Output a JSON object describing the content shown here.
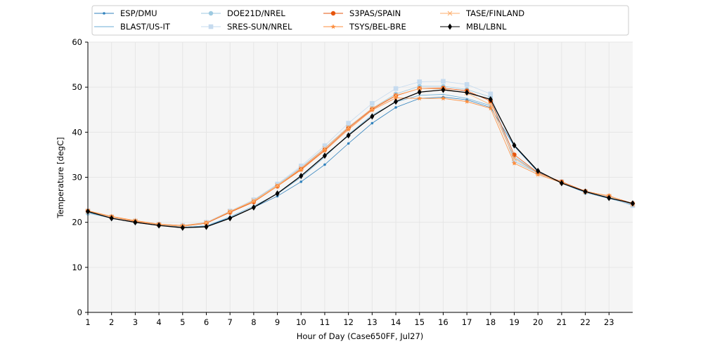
{
  "chart_data": {
    "type": "line",
    "xlabel": "Hour of Day (Case650FF, Jul27)",
    "ylabel": "Temperature [degC]",
    "xlim": [
      1,
      24
    ],
    "ylim": [
      0,
      60
    ],
    "xticks": [
      1,
      2,
      3,
      4,
      5,
      6,
      7,
      8,
      9,
      10,
      11,
      12,
      13,
      14,
      15,
      16,
      17,
      18,
      19,
      20,
      21,
      22,
      23
    ],
    "yticks": [
      0,
      10,
      20,
      30,
      40,
      50,
      60
    ],
    "grid": true,
    "legend_position": "top-center",
    "x": [
      1,
      2,
      3,
      4,
      5,
      6,
      7,
      8,
      9,
      10,
      11,
      12,
      13,
      14,
      15,
      16,
      17,
      18,
      19,
      20,
      21,
      22,
      23,
      24
    ],
    "series": [
      {
        "name": "ESP/DMU",
        "color": "#3182bd",
        "marker": "dot",
        "values": [
          22.2,
          20.9,
          20.0,
          19.3,
          18.9,
          19.2,
          21.0,
          23.3,
          25.8,
          29.0,
          32.8,
          37.5,
          42.0,
          45.5,
          47.5,
          47.8,
          47.2,
          45.5,
          36.9,
          31.2,
          28.7,
          26.6,
          25.3,
          23.9
        ]
      },
      {
        "name": "BLAST/US-IT",
        "color": "#6baed6",
        "marker": "tick",
        "values": [
          22.2,
          20.9,
          20.0,
          19.3,
          18.9,
          19.2,
          21.2,
          23.6,
          26.3,
          30.0,
          34.5,
          39.5,
          43.8,
          46.7,
          48.2,
          48.4,
          47.5,
          45.9,
          34.5,
          30.9,
          28.9,
          26.7,
          25.4,
          23.8
        ]
      },
      {
        "name": "DOE21D/NREL",
        "color": "#9ecae1",
        "marker": "circle",
        "values": [
          22.0,
          20.9,
          20.0,
          19.3,
          19.1,
          19.8,
          22.2,
          24.9,
          28.3,
          32.2,
          36.5,
          41.2,
          45.3,
          48.5,
          50.2,
          50.2,
          49.5,
          47.8,
          33.5,
          30.9,
          28.9,
          26.6,
          25.4,
          23.7
        ]
      },
      {
        "name": "SRES-SUN/NREL",
        "color": "#c6dbef",
        "marker": "square",
        "values": [
          22.5,
          21.2,
          20.3,
          19.6,
          19.3,
          20.0,
          22.5,
          25.0,
          28.5,
          32.5,
          37.0,
          42.0,
          46.4,
          49.7,
          51.2,
          51.3,
          50.6,
          48.5,
          33.8,
          31.0,
          29.0,
          26.8,
          25.6,
          23.7
        ]
      },
      {
        "name": "S3PAS/SPAIN",
        "color": "#e6550d",
        "marker": "circle",
        "values": [
          22.5,
          21.2,
          20.2,
          19.5,
          19.1,
          19.8,
          22.2,
          24.5,
          28.0,
          31.8,
          36.1,
          40.9,
          45.1,
          48.1,
          49.7,
          49.8,
          49.2,
          46.9,
          35.0,
          31.0,
          29.0,
          26.9,
          25.8,
          24.2
        ]
      },
      {
        "name": "TSYS/BEL-BRE",
        "color": "#fd8d3c",
        "marker": "star",
        "values": [
          22.6,
          21.3,
          20.4,
          19.6,
          19.3,
          19.9,
          22.3,
          24.6,
          28.0,
          31.6,
          35.9,
          40.6,
          44.9,
          47.6,
          47.5,
          47.5,
          46.8,
          45.3,
          33.1,
          30.6,
          28.8,
          26.8,
          25.9,
          24.0
        ]
      },
      {
        "name": "TASE/FINLAND",
        "color": "#fdae6b",
        "marker": "x",
        "values": [
          22.5,
          21.2,
          20.3,
          19.5,
          19.1,
          19.9,
          22.4,
          24.8,
          28.2,
          32.0,
          36.4,
          41.1,
          45.3,
          48.2,
          49.7,
          49.6,
          48.7,
          46.1,
          34.2,
          30.9,
          28.9,
          26.8,
          25.8,
          24.0
        ]
      },
      {
        "name": "MBL/LBNL",
        "color": "#000000",
        "marker": "diamond",
        "values": [
          22.4,
          20.9,
          20.0,
          19.3,
          18.8,
          19.0,
          20.9,
          23.3,
          26.4,
          30.3,
          34.8,
          39.3,
          43.5,
          46.8,
          48.9,
          49.4,
          48.8,
          47.3,
          37.1,
          31.4,
          28.7,
          26.8,
          25.4,
          24.2
        ]
      }
    ]
  }
}
